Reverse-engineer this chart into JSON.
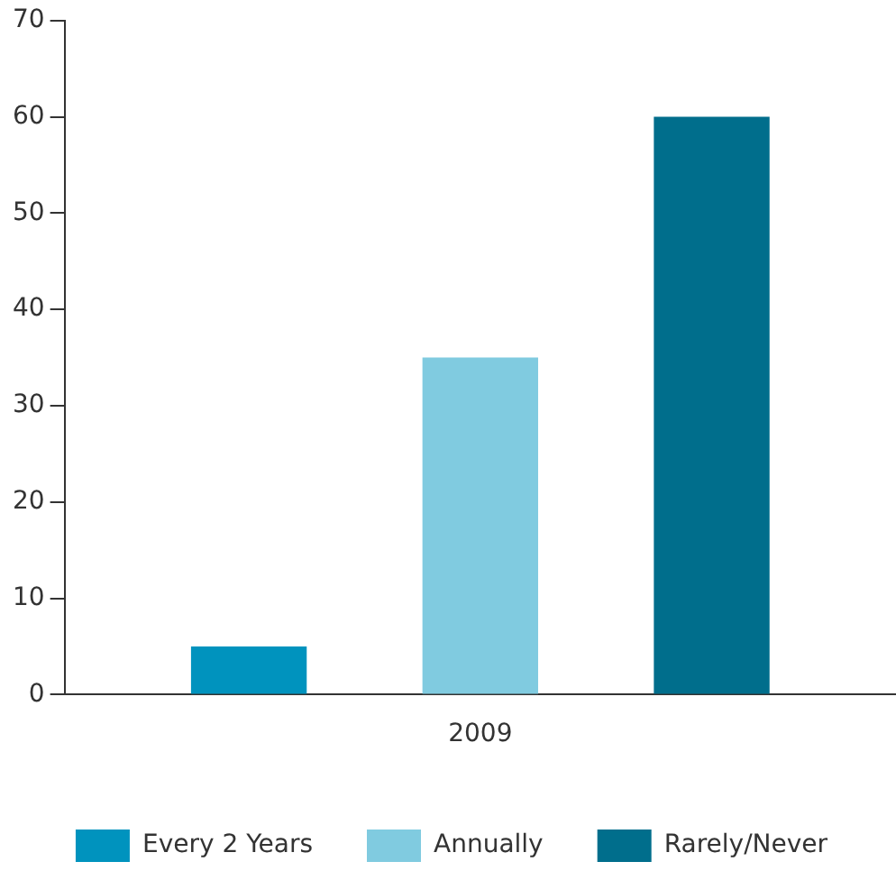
{
  "chart_data": {
    "type": "bar",
    "categories": [
      "2009"
    ],
    "series": [
      {
        "name": "Every 2 Years",
        "color": "#0093be",
        "values": [
          5
        ]
      },
      {
        "name": "Annually",
        "color": "#80cbe0",
        "values": [
          35
        ]
      },
      {
        "name": "Rarely/Never",
        "color": "#006e8c",
        "values": [
          60
        ]
      }
    ],
    "ylim": [
      0,
      70
    ],
    "yticks": [
      0,
      10,
      20,
      30,
      40,
      50,
      60,
      70
    ],
    "grid": false,
    "legend": "bottom"
  }
}
